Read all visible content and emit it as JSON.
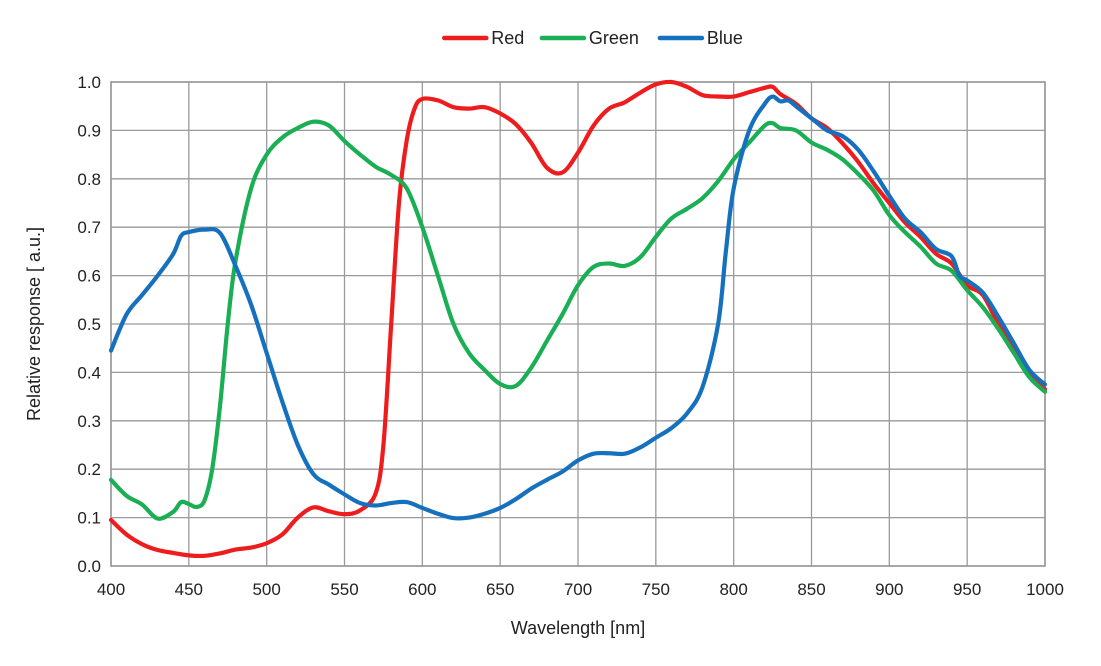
{
  "chart_data": {
    "type": "line",
    "title": "",
    "xlabel": "Wavelength [nm]",
    "ylabel": "Relative response [ a.u.]",
    "xlim": [
      400,
      1000
    ],
    "ylim": [
      0.0,
      1.0
    ],
    "x_ticks": [
      400,
      450,
      500,
      550,
      600,
      650,
      700,
      750,
      800,
      850,
      900,
      950,
      1000
    ],
    "x_tick_labels": [
      "400",
      "450",
      "500",
      "550",
      "600",
      "650",
      "700",
      "750",
      "800",
      "850",
      "900",
      "950",
      "1000"
    ],
    "y_ticks": [
      0.0,
      0.1,
      0.2,
      0.3,
      0.4,
      0.5,
      0.6,
      0.7,
      0.8,
      0.9,
      1.0
    ],
    "y_tick_labels": [
      "0.0",
      "0.1",
      "0.2",
      "0.3",
      "0.4",
      "0.5",
      "0.6",
      "0.7",
      "0.8",
      "0.9",
      "1.0"
    ],
    "grid": true,
    "legend_position": "top-center",
    "series": [
      {
        "name": "Red",
        "color": "#ee1c1c",
        "points": [
          [
            400,
            0.095
          ],
          [
            410,
            0.065
          ],
          [
            420,
            0.045
          ],
          [
            430,
            0.033
          ],
          [
            440,
            0.027
          ],
          [
            450,
            0.022
          ],
          [
            460,
            0.021
          ],
          [
            470,
            0.026
          ],
          [
            480,
            0.034
          ],
          [
            490,
            0.038
          ],
          [
            500,
            0.047
          ],
          [
            510,
            0.065
          ],
          [
            520,
            0.1
          ],
          [
            530,
            0.121
          ],
          [
            540,
            0.113
          ],
          [
            550,
            0.107
          ],
          [
            560,
            0.115
          ],
          [
            570,
            0.15
          ],
          [
            575,
            0.25
          ],
          [
            580,
            0.5
          ],
          [
            585,
            0.75
          ],
          [
            590,
            0.88
          ],
          [
            595,
            0.945
          ],
          [
            600,
            0.965
          ],
          [
            610,
            0.962
          ],
          [
            620,
            0.948
          ],
          [
            630,
            0.945
          ],
          [
            640,
            0.948
          ],
          [
            650,
            0.935
          ],
          [
            660,
            0.913
          ],
          [
            670,
            0.874
          ],
          [
            680,
            0.823
          ],
          [
            690,
            0.813
          ],
          [
            700,
            0.854
          ],
          [
            710,
            0.91
          ],
          [
            720,
            0.945
          ],
          [
            730,
            0.958
          ],
          [
            740,
            0.978
          ],
          [
            750,
            0.995
          ],
          [
            760,
            1.0
          ],
          [
            770,
            0.99
          ],
          [
            780,
            0.973
          ],
          [
            790,
            0.97
          ],
          [
            800,
            0.97
          ],
          [
            810,
            0.979
          ],
          [
            820,
            0.988
          ],
          [
            825,
            0.99
          ],
          [
            830,
            0.975
          ],
          [
            840,
            0.955
          ],
          [
            850,
            0.925
          ],
          [
            860,
            0.905
          ],
          [
            870,
            0.873
          ],
          [
            880,
            0.835
          ],
          [
            890,
            0.79
          ],
          [
            900,
            0.75
          ],
          [
            910,
            0.71
          ],
          [
            920,
            0.68
          ],
          [
            930,
            0.645
          ],
          [
            940,
            0.625
          ],
          [
            950,
            0.58
          ],
          [
            960,
            0.56
          ],
          [
            970,
            0.5
          ],
          [
            980,
            0.45
          ],
          [
            990,
            0.4
          ],
          [
            1000,
            0.365
          ]
        ]
      },
      {
        "name": "Green",
        "color": "#1aaf54",
        "points": [
          [
            400,
            0.178
          ],
          [
            410,
            0.145
          ],
          [
            420,
            0.127
          ],
          [
            430,
            0.098
          ],
          [
            440,
            0.112
          ],
          [
            445,
            0.132
          ],
          [
            450,
            0.128
          ],
          [
            455,
            0.122
          ],
          [
            460,
            0.135
          ],
          [
            465,
            0.2
          ],
          [
            470,
            0.33
          ],
          [
            475,
            0.5
          ],
          [
            480,
            0.63
          ],
          [
            490,
            0.78
          ],
          [
            500,
            0.85
          ],
          [
            510,
            0.885
          ],
          [
            520,
            0.905
          ],
          [
            530,
            0.918
          ],
          [
            540,
            0.91
          ],
          [
            550,
            0.878
          ],
          [
            560,
            0.85
          ],
          [
            570,
            0.825
          ],
          [
            580,
            0.808
          ],
          [
            590,
            0.78
          ],
          [
            600,
            0.7
          ],
          [
            610,
            0.6
          ],
          [
            620,
            0.5
          ],
          [
            630,
            0.44
          ],
          [
            640,
            0.405
          ],
          [
            650,
            0.376
          ],
          [
            660,
            0.372
          ],
          [
            670,
            0.41
          ],
          [
            680,
            0.465
          ],
          [
            690,
            0.52
          ],
          [
            700,
            0.58
          ],
          [
            710,
            0.618
          ],
          [
            720,
            0.625
          ],
          [
            730,
            0.62
          ],
          [
            740,
            0.638
          ],
          [
            750,
            0.68
          ],
          [
            760,
            0.718
          ],
          [
            770,
            0.738
          ],
          [
            780,
            0.76
          ],
          [
            790,
            0.795
          ],
          [
            800,
            0.84
          ],
          [
            810,
            0.875
          ],
          [
            820,
            0.91
          ],
          [
            825,
            0.915
          ],
          [
            830,
            0.905
          ],
          [
            840,
            0.9
          ],
          [
            850,
            0.875
          ],
          [
            860,
            0.86
          ],
          [
            870,
            0.84
          ],
          [
            880,
            0.81
          ],
          [
            890,
            0.775
          ],
          [
            900,
            0.725
          ],
          [
            910,
            0.69
          ],
          [
            920,
            0.66
          ],
          [
            930,
            0.625
          ],
          [
            940,
            0.61
          ],
          [
            950,
            0.57
          ],
          [
            960,
            0.535
          ],
          [
            970,
            0.49
          ],
          [
            980,
            0.44
          ],
          [
            990,
            0.39
          ],
          [
            1000,
            0.36
          ]
        ]
      },
      {
        "name": "Blue",
        "color": "#1570be",
        "points": [
          [
            400,
            0.445
          ],
          [
            410,
            0.52
          ],
          [
            420,
            0.56
          ],
          [
            430,
            0.6
          ],
          [
            440,
            0.645
          ],
          [
            445,
            0.682
          ],
          [
            450,
            0.69
          ],
          [
            460,
            0.695
          ],
          [
            470,
            0.688
          ],
          [
            480,
            0.62
          ],
          [
            490,
            0.54
          ],
          [
            500,
            0.44
          ],
          [
            510,
            0.34
          ],
          [
            520,
            0.25
          ],
          [
            530,
            0.19
          ],
          [
            540,
            0.168
          ],
          [
            550,
            0.148
          ],
          [
            560,
            0.13
          ],
          [
            570,
            0.125
          ],
          [
            580,
            0.13
          ],
          [
            590,
            0.132
          ],
          [
            600,
            0.12
          ],
          [
            610,
            0.108
          ],
          [
            620,
            0.099
          ],
          [
            630,
            0.1
          ],
          [
            640,
            0.108
          ],
          [
            650,
            0.12
          ],
          [
            660,
            0.138
          ],
          [
            670,
            0.16
          ],
          [
            680,
            0.178
          ],
          [
            690,
            0.195
          ],
          [
            700,
            0.218
          ],
          [
            710,
            0.232
          ],
          [
            720,
            0.233
          ],
          [
            730,
            0.232
          ],
          [
            740,
            0.245
          ],
          [
            750,
            0.265
          ],
          [
            760,
            0.285
          ],
          [
            770,
            0.315
          ],
          [
            780,
            0.37
          ],
          [
            790,
            0.5
          ],
          [
            795,
            0.65
          ],
          [
            800,
            0.78
          ],
          [
            810,
            0.9
          ],
          [
            820,
            0.955
          ],
          [
            825,
            0.97
          ],
          [
            830,
            0.96
          ],
          [
            835,
            0.962
          ],
          [
            840,
            0.95
          ],
          [
            850,
            0.925
          ],
          [
            860,
            0.9
          ],
          [
            870,
            0.888
          ],
          [
            880,
            0.86
          ],
          [
            890,
            0.815
          ],
          [
            900,
            0.765
          ],
          [
            910,
            0.718
          ],
          [
            920,
            0.69
          ],
          [
            930,
            0.655
          ],
          [
            940,
            0.64
          ],
          [
            945,
            0.6
          ],
          [
            950,
            0.59
          ],
          [
            960,
            0.565
          ],
          [
            970,
            0.515
          ],
          [
            980,
            0.46
          ],
          [
            990,
            0.405
          ],
          [
            1000,
            0.375
          ]
        ]
      }
    ]
  }
}
